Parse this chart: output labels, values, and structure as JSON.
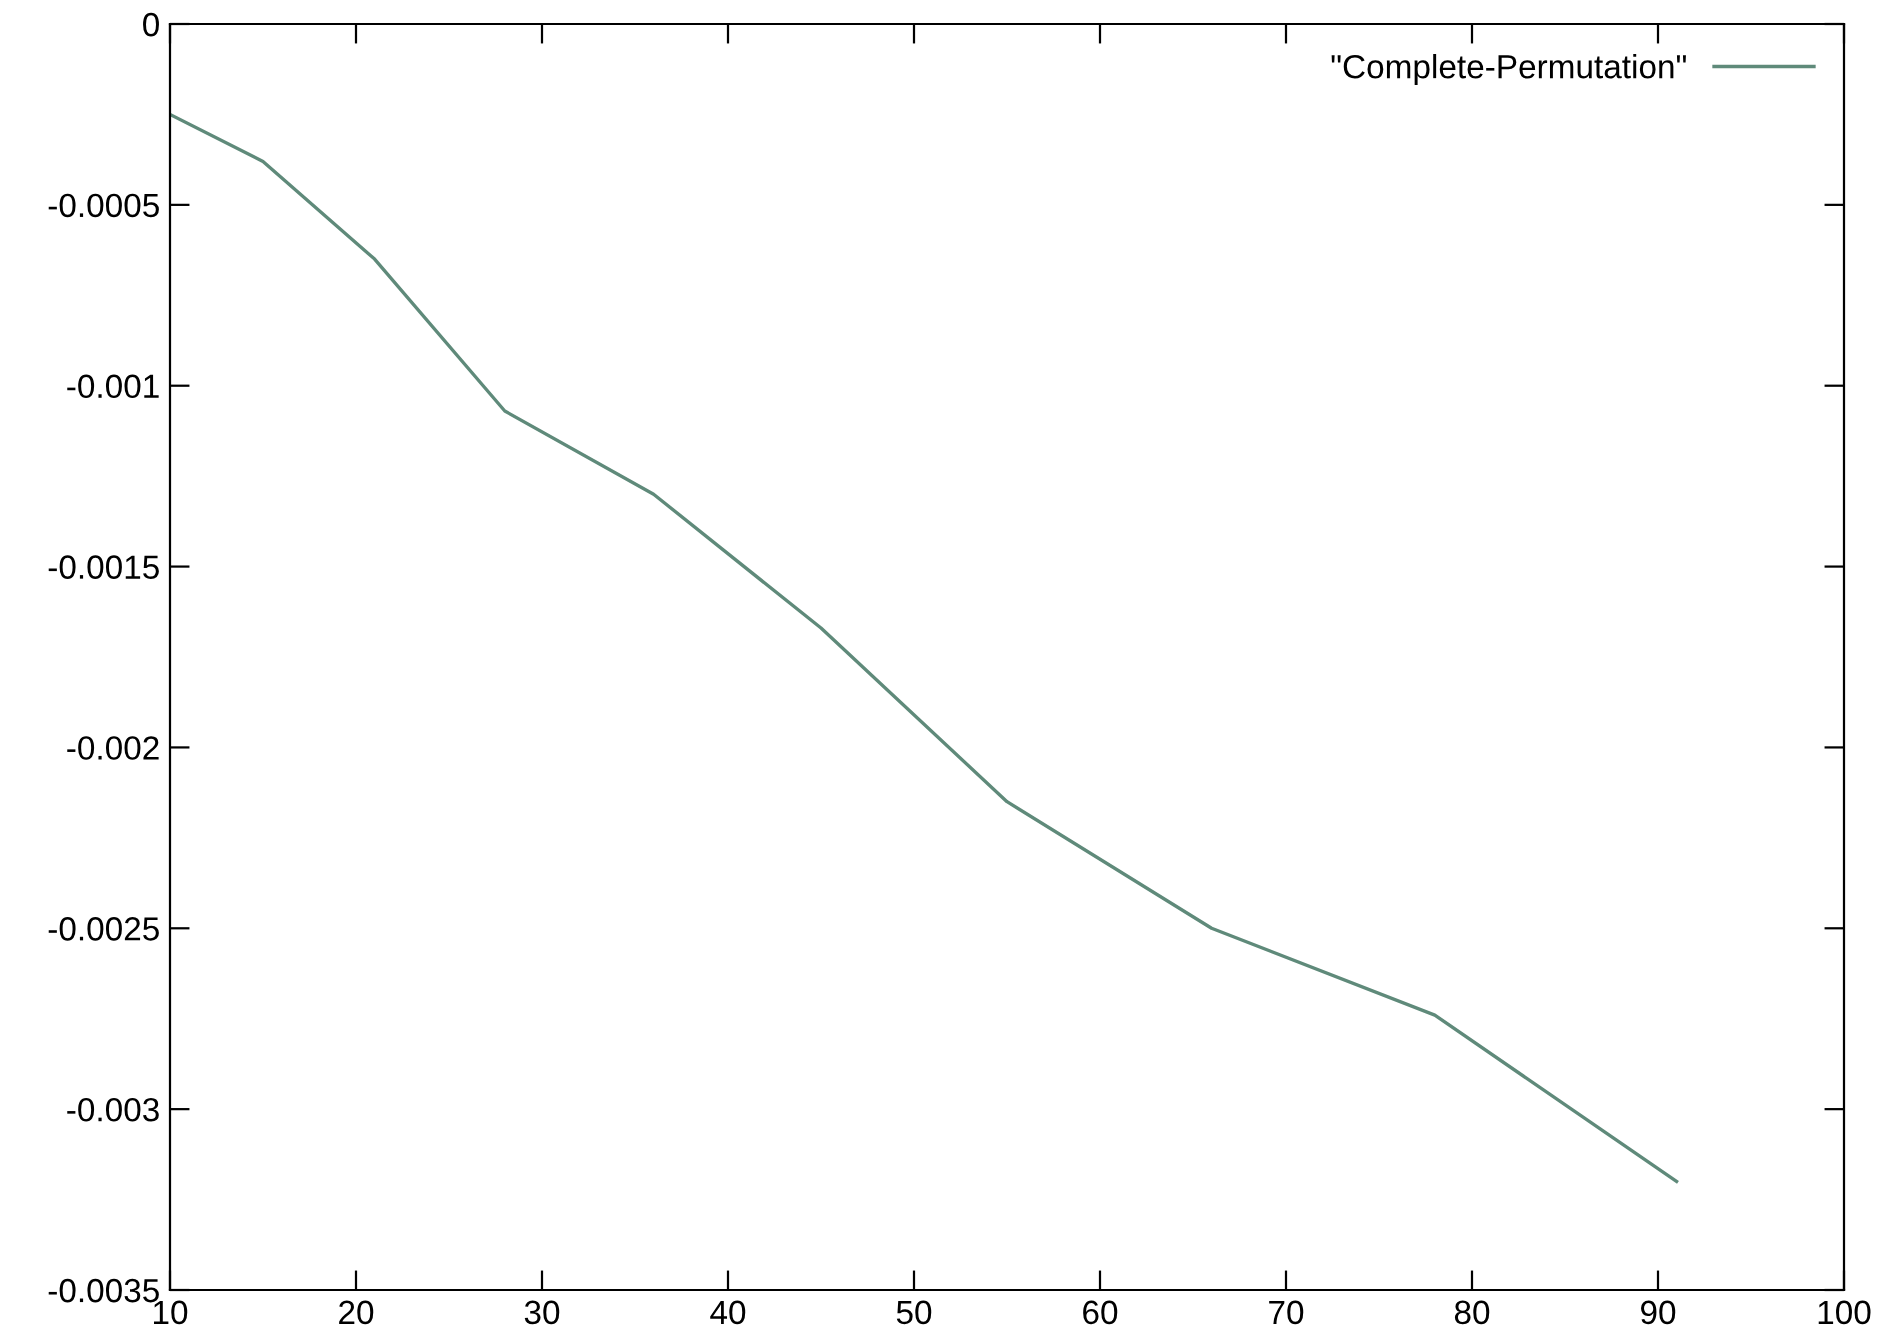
{
  "chart_data": {
    "type": "line",
    "x": [
      10,
      15,
      21,
      28,
      36,
      45,
      55,
      66,
      78,
      91
    ],
    "series": [
      {
        "name": "\"Complete-Permutation\"",
        "color": "#5f8a7a",
        "values": [
          -0.00025,
          -0.00038,
          -0.00065,
          -0.00107,
          -0.0013,
          -0.00167,
          -0.00215,
          -0.0025,
          -0.00274,
          -0.0032
        ]
      }
    ],
    "xlim": [
      10,
      100
    ],
    "xticks": [
      10,
      20,
      30,
      40,
      50,
      60,
      70,
      80,
      90,
      100
    ],
    "ylim": [
      -0.0035,
      0
    ],
    "yticks": [
      -0.0035,
      -0.003,
      -0.0025,
      -0.002,
      -0.0015,
      -0.001,
      -0.0005,
      0
    ],
    "grid": false,
    "legend": "top right",
    "marker": "none",
    "line_style": "solid"
  }
}
